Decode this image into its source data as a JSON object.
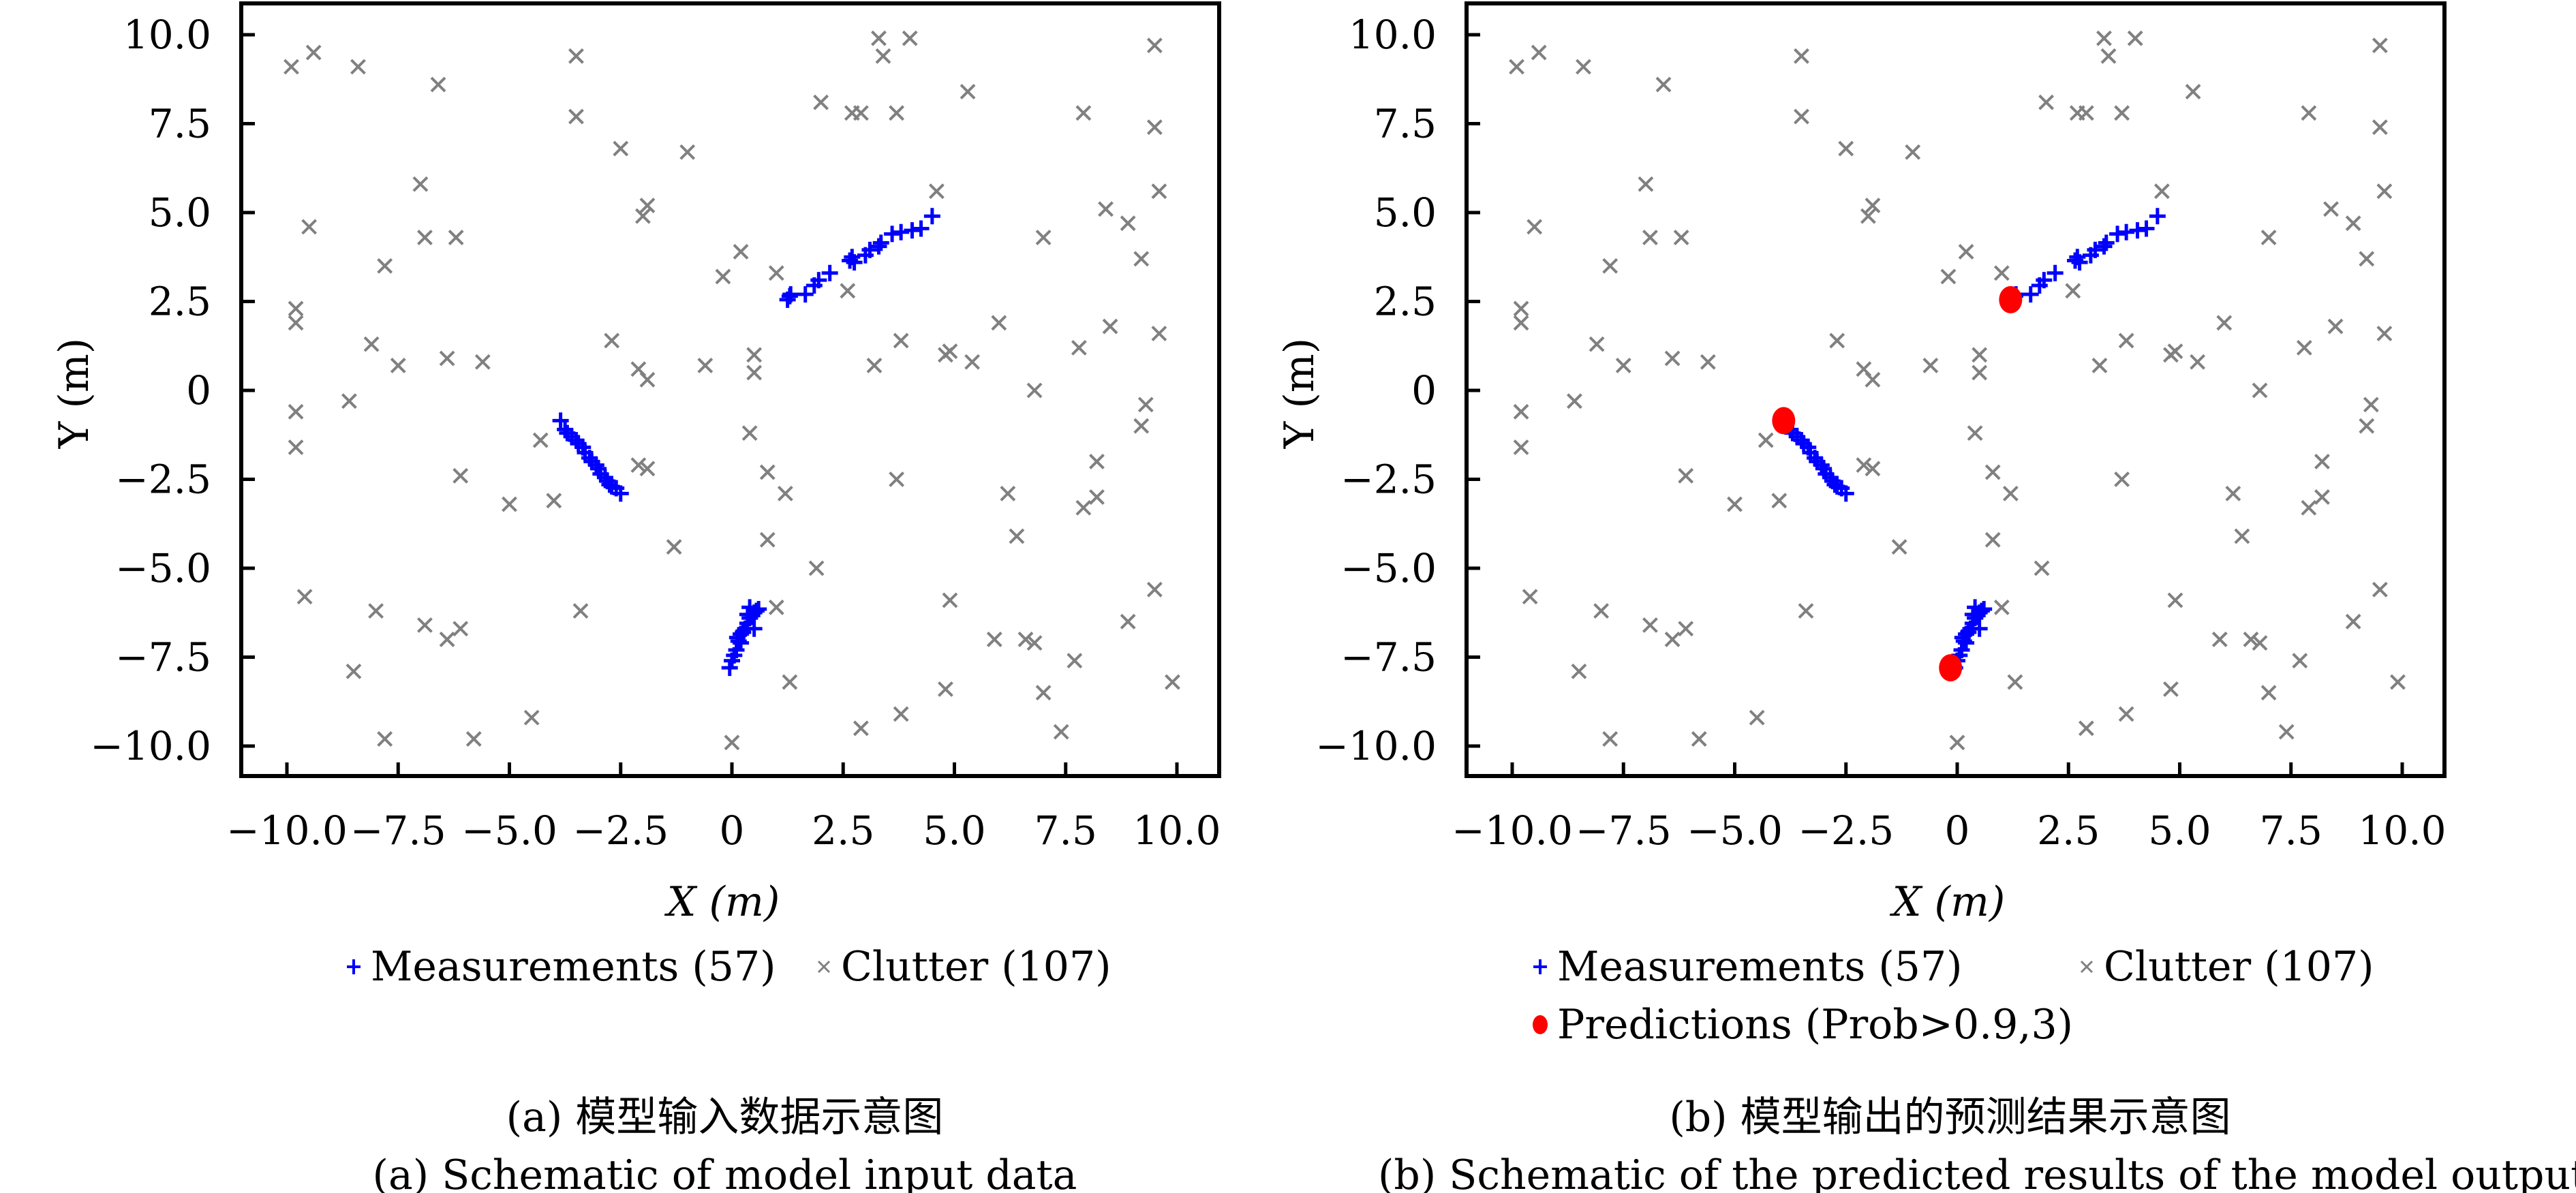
{
  "chart_data": [
    {
      "type": "scatter",
      "panel": "a",
      "title": "",
      "xlabel": "X (m)",
      "ylabel": "Y (m)",
      "xlim": [
        -11.0,
        10.9
      ],
      "ylim": [
        -10.9,
        10.9
      ],
      "xticks": [
        -10.0,
        -7.5,
        -5.0,
        -2.5,
        0,
        2.5,
        5.0,
        7.5,
        10.0
      ],
      "xtick_labels": [
        "−10.0",
        "−7.5",
        "−5.0",
        "−2.5",
        "0",
        "2.5",
        "5.0",
        "7.5",
        "10.0"
      ],
      "yticks": [
        10.0,
        7.5,
        5.0,
        2.5,
        0,
        -2.5,
        -5.0,
        -7.5,
        -10.0
      ],
      "ytick_labels": [
        "10.0",
        "7.5",
        "5.0",
        "2.5",
        "0",
        "−2.5",
        "−5.0",
        "−7.5",
        "−10.0"
      ],
      "grid": false,
      "legend_placement": "bottom",
      "legend": [
        {
          "label": "Measurements (57)",
          "marker": "plus",
          "color": "#0000ff"
        },
        {
          "label": "Clutter (107)",
          "marker": "x",
          "color": "#808080"
        }
      ],
      "caption_cn": "(a) 模型输入数据示意图",
      "caption_en": "(a) Schematic of model input data",
      "series_refs": [
        "measurements",
        "clutter"
      ]
    },
    {
      "type": "scatter",
      "panel": "b",
      "title": "",
      "xlabel": "X (m)",
      "ylabel": "Y (m)",
      "xlim": [
        -11.0,
        10.9
      ],
      "ylim": [
        -10.9,
        10.9
      ],
      "xticks": [
        -10.0,
        -7.5,
        -5.0,
        -2.5,
        0,
        2.5,
        5.0,
        7.5,
        10.0
      ],
      "xtick_labels": [
        "−10.0",
        "−7.5",
        "−5.0",
        "−2.5",
        "0",
        "2.5",
        "5.0",
        "7.5",
        "10.0"
      ],
      "yticks": [
        10.0,
        7.5,
        5.0,
        2.5,
        0,
        -2.5,
        -5.0,
        -7.5,
        -10.0
      ],
      "ytick_labels": [
        "10.0",
        "7.5",
        "5.0",
        "2.5",
        "0",
        "−2.5",
        "−5.0",
        "−7.5",
        "−10.0"
      ],
      "grid": false,
      "legend_placement": "bottom",
      "legend": [
        {
          "label": "Measurements (57)",
          "marker": "plus",
          "color": "#0000ff"
        },
        {
          "label": "Clutter (107)",
          "marker": "x",
          "color": "#808080"
        },
        {
          "label": "Predictions (Prob>0.9,3)",
          "marker": "dot",
          "color": "#ff0000"
        }
      ],
      "caption_cn": "(b) 模型输出的预测结果示意图",
      "caption_en": "(b) Schematic of the predicted results of the model outputs",
      "series_refs": [
        "measurements",
        "clutter",
        "predictions"
      ]
    }
  ],
  "series": {
    "measurements": {
      "name": "Measurements",
      "color": "#0000ff",
      "points": [
        [
          1.25,
          2.55
        ],
        [
          1.3,
          2.65
        ],
        [
          1.32,
          2.7
        ],
        [
          1.65,
          2.7
        ],
        [
          1.85,
          2.95
        ],
        [
          1.95,
          3.1
        ],
        [
          2.2,
          3.3
        ],
        [
          2.65,
          3.65
        ],
        [
          2.7,
          3.75
        ],
        [
          2.75,
          3.6
        ],
        [
          3.0,
          3.8
        ],
        [
          3.1,
          3.95
        ],
        [
          3.3,
          4.05
        ],
        [
          3.35,
          4.15
        ],
        [
          3.6,
          4.4
        ],
        [
          3.8,
          4.45
        ],
        [
          4.05,
          4.5
        ],
        [
          4.25,
          4.55
        ],
        [
          4.5,
          4.9
        ],
        [
          -3.85,
          -0.85
        ],
        [
          -3.75,
          -1.1
        ],
        [
          -3.7,
          -1.2
        ],
        [
          -3.6,
          -1.3
        ],
        [
          -3.5,
          -1.4
        ],
        [
          -3.45,
          -1.5
        ],
        [
          -3.35,
          -1.6
        ],
        [
          -3.3,
          -1.75
        ],
        [
          -3.2,
          -1.9
        ],
        [
          -3.15,
          -2.0
        ],
        [
          -3.05,
          -2.1
        ],
        [
          -3.0,
          -2.2
        ],
        [
          -2.95,
          -2.35
        ],
        [
          -2.85,
          -2.45
        ],
        [
          -2.8,
          -2.55
        ],
        [
          -2.75,
          -2.65
        ],
        [
          -2.7,
          -2.7
        ],
        [
          -2.6,
          -2.75
        ],
        [
          -2.5,
          -2.9
        ],
        [
          -0.05,
          -7.8
        ],
        [
          0.0,
          -7.6
        ],
        [
          0.05,
          -7.45
        ],
        [
          0.1,
          -7.3
        ],
        [
          0.15,
          -7.05
        ],
        [
          0.12,
          -6.95
        ],
        [
          0.2,
          -6.85
        ],
        [
          0.25,
          -6.8
        ],
        [
          0.3,
          -6.7
        ],
        [
          0.35,
          -6.55
        ],
        [
          0.4,
          -6.4
        ],
        [
          0.45,
          -6.3
        ],
        [
          0.5,
          -6.25
        ],
        [
          0.55,
          -6.2
        ],
        [
          0.6,
          -6.15
        ],
        [
          0.35,
          -6.3
        ],
        [
          0.5,
          -6.7
        ],
        [
          0.2,
          -7.1
        ],
        [
          0.4,
          -6.1
        ]
      ]
    },
    "clutter": {
      "name": "Clutter",
      "color": "#808080",
      "points": [
        [
          -9.9,
          9.1
        ],
        [
          -9.4,
          9.5
        ],
        [
          -8.4,
          9.1
        ],
        [
          -6.6,
          8.6
        ],
        [
          -3.5,
          9.4
        ],
        [
          -3.5,
          7.7
        ],
        [
          -2.5,
          6.8
        ],
        [
          -1.0,
          6.7
        ],
        [
          -7.0,
          5.8
        ],
        [
          -9.5,
          4.6
        ],
        [
          -7.8,
          3.5
        ],
        [
          -6.9,
          4.3
        ],
        [
          -6.2,
          4.3
        ],
        [
          -2.0,
          4.9
        ],
        [
          -1.9,
          5.2
        ],
        [
          -9.8,
          2.3
        ],
        [
          -9.8,
          1.9
        ],
        [
          -8.1,
          1.3
        ],
        [
          -7.5,
          0.7
        ],
        [
          -6.4,
          0.9
        ],
        [
          -5.6,
          0.8
        ],
        [
          -2.7,
          1.4
        ],
        [
          -2.1,
          0.6
        ],
        [
          -1.9,
          0.3
        ],
        [
          -8.6,
          -0.3
        ],
        [
          -9.8,
          -0.6
        ],
        [
          -9.8,
          -1.6
        ],
        [
          -6.1,
          -2.4
        ],
        [
          -4.3,
          -1.4
        ],
        [
          -4.0,
          -3.1
        ],
        [
          -5.0,
          -3.2
        ],
        [
          -2.1,
          -2.1
        ],
        [
          -1.9,
          -2.2
        ],
        [
          -1.3,
          -4.4
        ],
        [
          -9.6,
          -5.8
        ],
        [
          -8.0,
          -6.2
        ],
        [
          -6.9,
          -6.6
        ],
        [
          -6.4,
          -7.0
        ],
        [
          -6.1,
          -6.7
        ],
        [
          -8.5,
          -7.9
        ],
        [
          -7.8,
          -9.8
        ],
        [
          -5.8,
          -9.8
        ],
        [
          -4.5,
          -9.2
        ],
        [
          -3.4,
          -6.2
        ],
        [
          0.0,
          -9.9
        ],
        [
          -0.2,
          3.2
        ],
        [
          0.2,
          3.9
        ],
        [
          0.5,
          1.0
        ],
        [
          0.5,
          0.5
        ],
        [
          -0.6,
          0.7
        ],
        [
          0.4,
          -1.2
        ],
        [
          0.8,
          -2.3
        ],
        [
          0.8,
          -4.2
        ],
        [
          1.0,
          3.3
        ],
        [
          1.9,
          -5.0
        ],
        [
          1.3,
          -8.2
        ],
        [
          1.0,
          -6.1
        ],
        [
          2.0,
          8.1
        ],
        [
          2.7,
          7.8
        ],
        [
          2.9,
          7.8
        ],
        [
          3.3,
          9.9
        ],
        [
          3.4,
          9.4
        ],
        [
          4.0,
          9.9
        ],
        [
          5.3,
          8.4
        ],
        [
          2.6,
          2.8
        ],
        [
          3.2,
          0.7
        ],
        [
          3.8,
          1.4
        ],
        [
          3.7,
          -2.5
        ],
        [
          2.9,
          -9.5
        ],
        [
          3.8,
          -9.1
        ],
        [
          4.8,
          -8.4
        ],
        [
          4.9,
          -5.9
        ],
        [
          4.8,
          1.0
        ],
        [
          4.9,
          1.1
        ],
        [
          5.4,
          0.8
        ],
        [
          4.6,
          5.6
        ],
        [
          6.0,
          1.9
        ],
        [
          6.2,
          -2.9
        ],
        [
          6.4,
          -4.1
        ],
        [
          5.9,
          -7.0
        ],
        [
          6.6,
          -7.0
        ],
        [
          6.8,
          -7.1
        ],
        [
          6.8,
          0.0
        ],
        [
          7.0,
          4.3
        ],
        [
          7.0,
          -8.5
        ],
        [
          7.4,
          -9.6
        ],
        [
          7.7,
          -7.6
        ],
        [
          7.8,
          1.2
        ],
        [
          7.9,
          7.8
        ],
        [
          7.9,
          -3.3
        ],
        [
          8.2,
          -3.0
        ],
        [
          8.2,
          -2.0
        ],
        [
          8.4,
          5.1
        ],
        [
          8.5,
          1.8
        ],
        [
          8.9,
          4.7
        ],
        [
          8.9,
          -6.5
        ],
        [
          9.2,
          3.7
        ],
        [
          9.2,
          -1.0
        ],
        [
          9.3,
          -0.4
        ],
        [
          9.5,
          9.7
        ],
        [
          9.5,
          7.4
        ],
        [
          9.6,
          5.6
        ],
        [
          9.6,
          1.6
        ],
        [
          9.5,
          -5.6
        ],
        [
          9.9,
          -8.2
        ],
        [
          1.2,
          -2.9
        ],
        [
          3.7,
          7.8
        ]
      ]
    },
    "predictions": {
      "name": "Predictions",
      "color": "#ff0000",
      "points": [
        [
          -3.9,
          -0.85
        ],
        [
          1.2,
          2.55
        ],
        [
          -0.15,
          -7.8
        ]
      ]
    }
  }
}
